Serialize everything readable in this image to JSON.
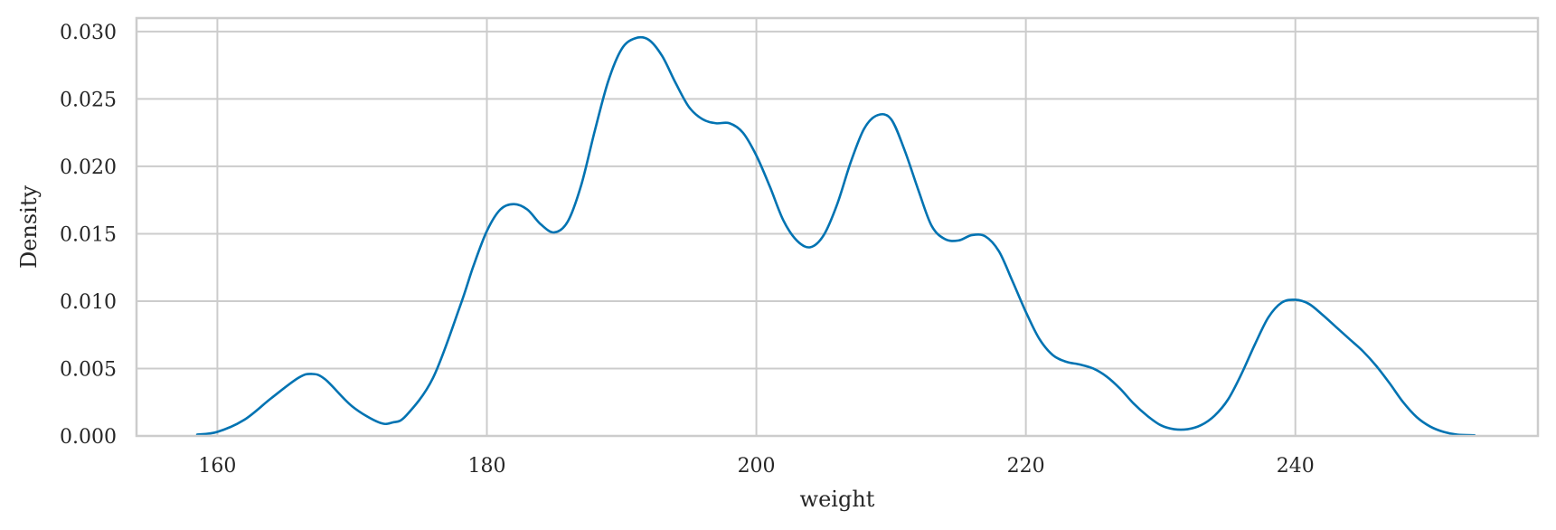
{
  "chart_data": {
    "type": "line",
    "title": "",
    "xlabel": "weight",
    "ylabel": "Density",
    "xlim": [
      154,
      258
    ],
    "ylim": [
      0,
      0.031
    ],
    "xticks": [
      160,
      180,
      200,
      220,
      240
    ],
    "xtick_labels": [
      "160",
      "180",
      "200",
      "220",
      "240"
    ],
    "yticks": [
      0,
      0.005,
      0.01,
      0.015,
      0.02,
      0.025,
      0.03
    ],
    "ytick_labels": [
      "0.000",
      "0.005",
      "0.010",
      "0.015",
      "0.020",
      "0.025",
      "0.030"
    ],
    "grid": true,
    "line_color": "#0173b2",
    "grid_color": "#cccccc",
    "series": [
      {
        "x": [
          158.5,
          160,
          162,
          164,
          166,
          167,
          168,
          170,
          172,
          173,
          174,
          176,
          178,
          179,
          180,
          181,
          182,
          183,
          184,
          185,
          186,
          187,
          188,
          189,
          190,
          191,
          192,
          193,
          194,
          195,
          196,
          197,
          198,
          199,
          200,
          201,
          202,
          203,
          204,
          205,
          206,
          207,
          208,
          209,
          210,
          211,
          212,
          213,
          214,
          215,
          216,
          217,
          218,
          219,
          220,
          221,
          222,
          223,
          224,
          225,
          226,
          227,
          228,
          229,
          230,
          231,
          232,
          233,
          234,
          235,
          236,
          237,
          238,
          239,
          240,
          241,
          242,
          243,
          244,
          245,
          246,
          247,
          248,
          249,
          250,
          251,
          252,
          253.3
        ],
        "y": [
          0.0001,
          0.0003,
          0.0012,
          0.0028,
          0.0043,
          0.0046,
          0.0042,
          0.0022,
          0.001,
          0.001,
          0.0015,
          0.0043,
          0.0096,
          0.0126,
          0.0152,
          0.0168,
          0.0172,
          0.0168,
          0.0157,
          0.0151,
          0.0159,
          0.0186,
          0.0226,
          0.0263,
          0.0287,
          0.0295,
          0.0294,
          0.0282,
          0.0262,
          0.0244,
          0.0235,
          0.0232,
          0.0232,
          0.0225,
          0.0208,
          0.0185,
          0.016,
          0.0145,
          0.014,
          0.0149,
          0.0172,
          0.0203,
          0.0228,
          0.0238,
          0.0235,
          0.0212,
          0.0183,
          0.0156,
          0.0146,
          0.0145,
          0.0149,
          0.0148,
          0.0137,
          0.0115,
          0.0092,
          0.0072,
          0.006,
          0.0055,
          0.0053,
          0.005,
          0.0044,
          0.0035,
          0.0024,
          0.0015,
          0.0008,
          0.0005,
          0.0005,
          0.0008,
          0.0015,
          0.0027,
          0.0046,
          0.0068,
          0.0088,
          0.0099,
          0.0101,
          0.0098,
          0.009,
          0.0081,
          0.0072,
          0.0063,
          0.0052,
          0.0039,
          0.0025,
          0.0014,
          0.0007,
          0.0003,
          0.0001,
          5e-05
        ]
      }
    ]
  }
}
